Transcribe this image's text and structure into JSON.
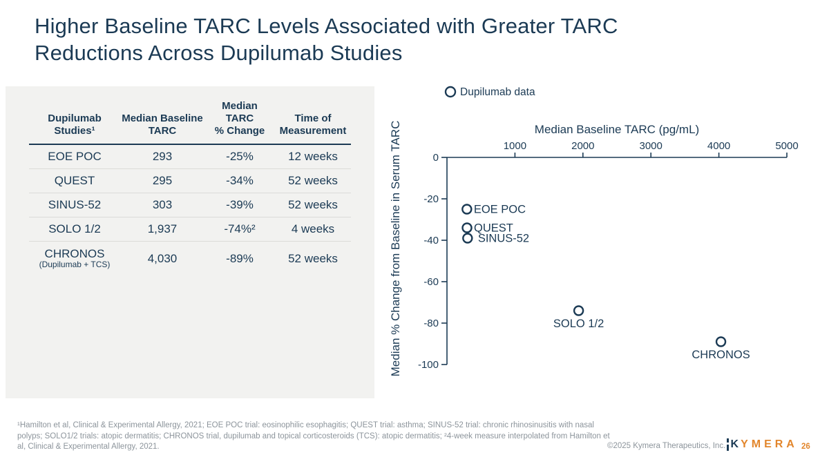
{
  "slide": {
    "title_lines": [
      "Higher Baseline TARC Levels Associated with Greater TARC",
      "Reductions Across Dupilumab Studies"
    ]
  },
  "table": {
    "headers": [
      {
        "lines": [
          "Dupilumab",
          "Studies¹"
        ]
      },
      {
        "lines": [
          "Median Baseline",
          "TARC"
        ]
      },
      {
        "lines": [
          "Median",
          "TARC",
          "% Change"
        ]
      },
      {
        "lines": [
          "Time of",
          "Measurement"
        ]
      }
    ],
    "rows": [
      {
        "study": "EOE POC",
        "study_sub": "",
        "baseline": "293",
        "change": "-25%",
        "time": "12 weeks"
      },
      {
        "study": "QUEST",
        "study_sub": "",
        "baseline": "295",
        "change": "-34%",
        "time": "52 weeks"
      },
      {
        "study": "SINUS-52",
        "study_sub": "",
        "baseline": "303",
        "change": "-39%",
        "time": "52 weeks"
      },
      {
        "study": "SOLO 1/2",
        "study_sub": "",
        "baseline": "1,937",
        "change": "-74%²",
        "time": "4 weeks"
      },
      {
        "study": "CHRONOS",
        "study_sub": "(Dupilumab + TCS)",
        "baseline": "4,030",
        "change": "-89%",
        "time": "52 weeks"
      }
    ]
  },
  "chart_data": {
    "type": "scatter",
    "xlabel": "Median Baseline TARC (pg/mL)",
    "ylabel": "Median % Change from Baseline in Serum TARC",
    "xlim": [
      0,
      5000
    ],
    "ylim": [
      -100,
      0
    ],
    "xticks": [
      1000,
      2000,
      3000,
      4000,
      5000
    ],
    "yticks": [
      0,
      -20,
      -40,
      -60,
      -80,
      -100
    ],
    "grid": false,
    "legend": {
      "marker": "open-circle-icon",
      "label": "Dupilumab data",
      "position": "top-left"
    },
    "marker_color": "#1b3a54",
    "points": [
      {
        "label": "EOE POC",
        "x": 293,
        "y": -25,
        "label_pos": "right"
      },
      {
        "label": "QUEST",
        "x": 295,
        "y": -34,
        "label_pos": "right"
      },
      {
        "label": "SINUS-52",
        "x": 303,
        "y": -39,
        "label_pos": "right-gap"
      },
      {
        "label": "SOLO 1/2",
        "x": 1937,
        "y": -74,
        "label_pos": "below"
      },
      {
        "label": "CHRONOS",
        "x": 4030,
        "y": -89,
        "label_pos": "below"
      }
    ]
  },
  "footnote": {
    "lines": [
      "¹Hamilton et al, Clinical & Experimental Allergy, 2021; EOE POC trial: eosinophilic esophagitis; QUEST trial: asthma; SINUS-52 trial: chronic rhinosinusitis with nasal",
      "polyps; SOLO1/2 trials: atopic dermatitis; CHRONOS trial, dupilumab and topical corticosteroids (TCS): atopic dermatitis; ²4-week measure interpolated from Hamilton et",
      "al, Clinical & Experimental Allergy, 2021."
    ]
  },
  "footer": {
    "copyright": "©2025 Kymera Therapeutics, Inc.",
    "logo_k": "K",
    "logo_rest": "YMERA",
    "page_number": "26"
  },
  "colors": {
    "navy": "#1b3a54",
    "orange": "#e2862c",
    "panel_gray": "#f2f2f0",
    "footnote_gray": "#8c949b"
  }
}
